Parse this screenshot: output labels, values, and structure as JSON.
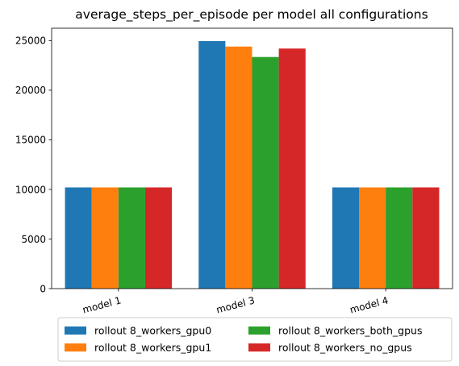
{
  "chart_data": {
    "type": "bar",
    "title": "average_steps_per_episode per model all configurations",
    "xlabel": "",
    "ylabel": "",
    "categories": [
      "model 1",
      "model 3",
      "model 4"
    ],
    "ylim": [
      0,
      26250
    ],
    "yticks": [
      0,
      5000,
      10000,
      15000,
      20000,
      25000
    ],
    "grid": false,
    "legend_position": "bottom",
    "series": [
      {
        "name": "rollout 8_workers_gpu0",
        "color": "#1f77b4",
        "values": [
          10200,
          24950,
          10200
        ]
      },
      {
        "name": "rollout 8_workers_gpu1",
        "color": "#ff7f0e",
        "values": [
          10200,
          24400,
          10200
        ]
      },
      {
        "name": "rollout 8_workers_both_gpus",
        "color": "#2ca02c",
        "values": [
          10200,
          23350,
          10200
        ]
      },
      {
        "name": "rollout 8_workers_no_gpus",
        "color": "#d62728",
        "values": [
          10200,
          24200,
          10200
        ]
      }
    ]
  }
}
